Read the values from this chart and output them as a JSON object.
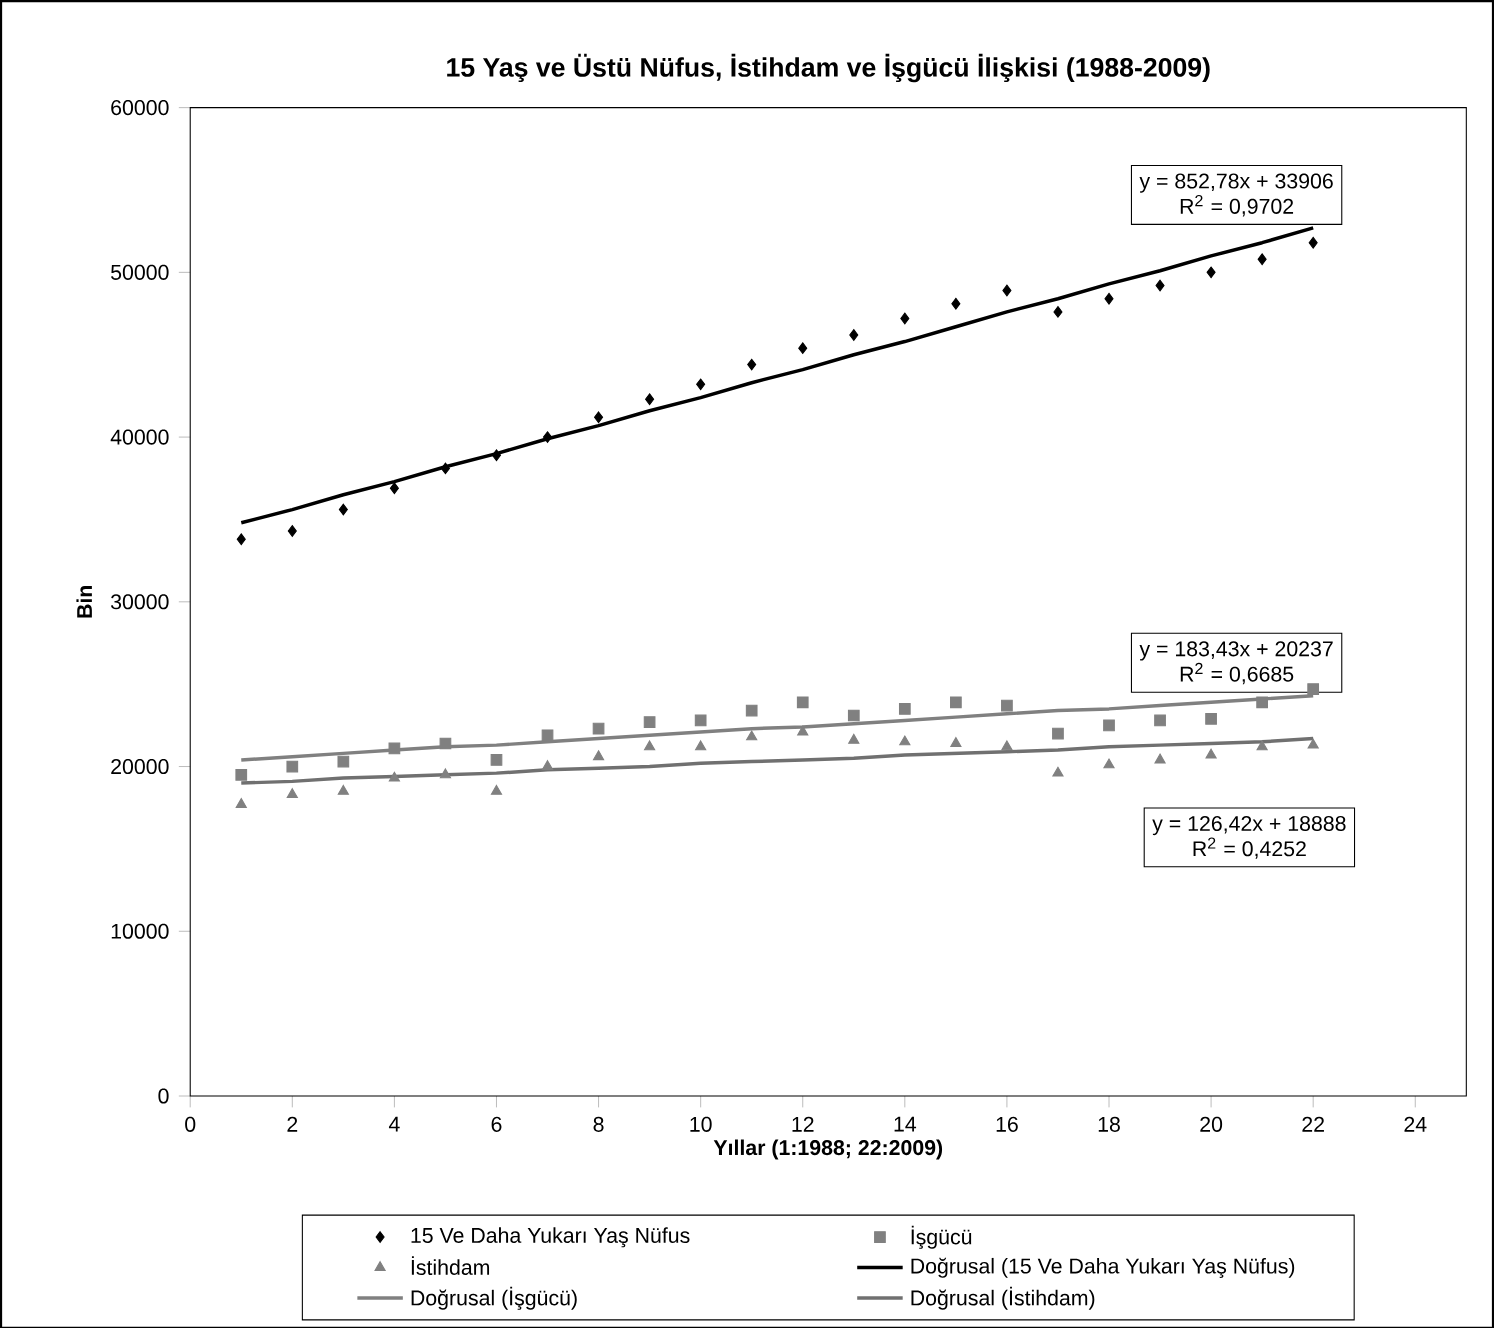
{
  "chart_data": {
    "type": "scatter",
    "title": "15 Yaş ve Üstü Nüfus, İstihdam ve İşgücü İlişkisi (1988-2009)",
    "xlabel": "Yıllar (1:1988; 22:2009)",
    "ylabel": "Bin",
    "x": [
      1,
      2,
      3,
      4,
      5,
      6,
      7,
      8,
      9,
      10,
      11,
      12,
      13,
      14,
      15,
      16,
      17,
      18,
      19,
      20,
      21,
      22
    ],
    "series": [
      {
        "name": "15 Ve Daha Yukarı Yaş Nüfus",
        "color": "#000000",
        "marker": "diamond",
        "values": [
          33800,
          34300,
          35600,
          36900,
          38100,
          38900,
          40000,
          41200,
          42300,
          43200,
          44400,
          45400,
          46200,
          47200,
          48100,
          48900,
          47600,
          48400,
          49200,
          50000,
          50800,
          51800
        ]
      },
      {
        "name": "İşgücü",
        "color": "#808080",
        "marker": "square",
        "values": [
          19500,
          20000,
          20300,
          21100,
          21400,
          20400,
          21900,
          22300,
          22700,
          22800,
          23400,
          23900,
          23100,
          23500,
          23900,
          23700,
          22000,
          22500,
          22800,
          22900,
          23900,
          24700
        ]
      },
      {
        "name": "İstihdam",
        "color": "#808080",
        "marker": "triangle",
        "values": [
          17700,
          18300,
          18500,
          19300,
          19500,
          18500,
          20000,
          20600,
          21200,
          21200,
          21800,
          22100,
          21600,
          21500,
          21400,
          21200,
          19600,
          20100,
          20400,
          20700,
          21200,
          21300
        ]
      },
      {
        "name": "Doğrusal (15 Ve Daha Yukarı Yaş Nüfus)",
        "type": "line",
        "color": "#000000",
        "values": [
          34800,
          35600,
          36500,
          37300,
          38200,
          39000,
          39900,
          40700,
          41600,
          42400,
          43300,
          44100,
          45000,
          45800,
          46700,
          47600,
          48400,
          49300,
          50100,
          51000,
          51800,
          52700
        ]
      },
      {
        "name": "Doğrusal (İşgücü)",
        "type": "line",
        "color": "#808080",
        "values": [
          20400,
          20600,
          20800,
          21000,
          21200,
          21300,
          21500,
          21700,
          21900,
          22100,
          22300,
          22400,
          22600,
          22800,
          23000,
          23200,
          23400,
          23500,
          23700,
          23900,
          24100,
          24300
        ]
      },
      {
        "name": "Doğrusal (İstihdam)",
        "type": "line",
        "color": "#707070",
        "values": [
          19000,
          19100,
          19300,
          19400,
          19500,
          19600,
          19800,
          19900,
          20000,
          20200,
          20300,
          20400,
          20500,
          20700,
          20800,
          20900,
          21000,
          21200,
          21300,
          21400,
          21500,
          21700
        ]
      }
    ],
    "annotations": [
      "y = 852,78x + 33906",
      "R$^{2}$ = 0,9702",
      "y = 183,43x + 20237",
      "R$^{2}$ = 0,6685",
      "y = 126,42x + 18888",
      "R$^{2}$ = 0,4252"
    ],
    "xlim": [
      0,
      25
    ],
    "xticks": [
      0,
      2,
      4,
      6,
      8,
      10,
      12,
      14,
      16,
      18,
      20,
      22,
      24
    ],
    "ylim": [
      0,
      60000
    ],
    "yticks": [
      0,
      10000,
      20000,
      30000,
      40000,
      50000,
      60000
    ],
    "grid": false,
    "legend": "bottom"
  }
}
